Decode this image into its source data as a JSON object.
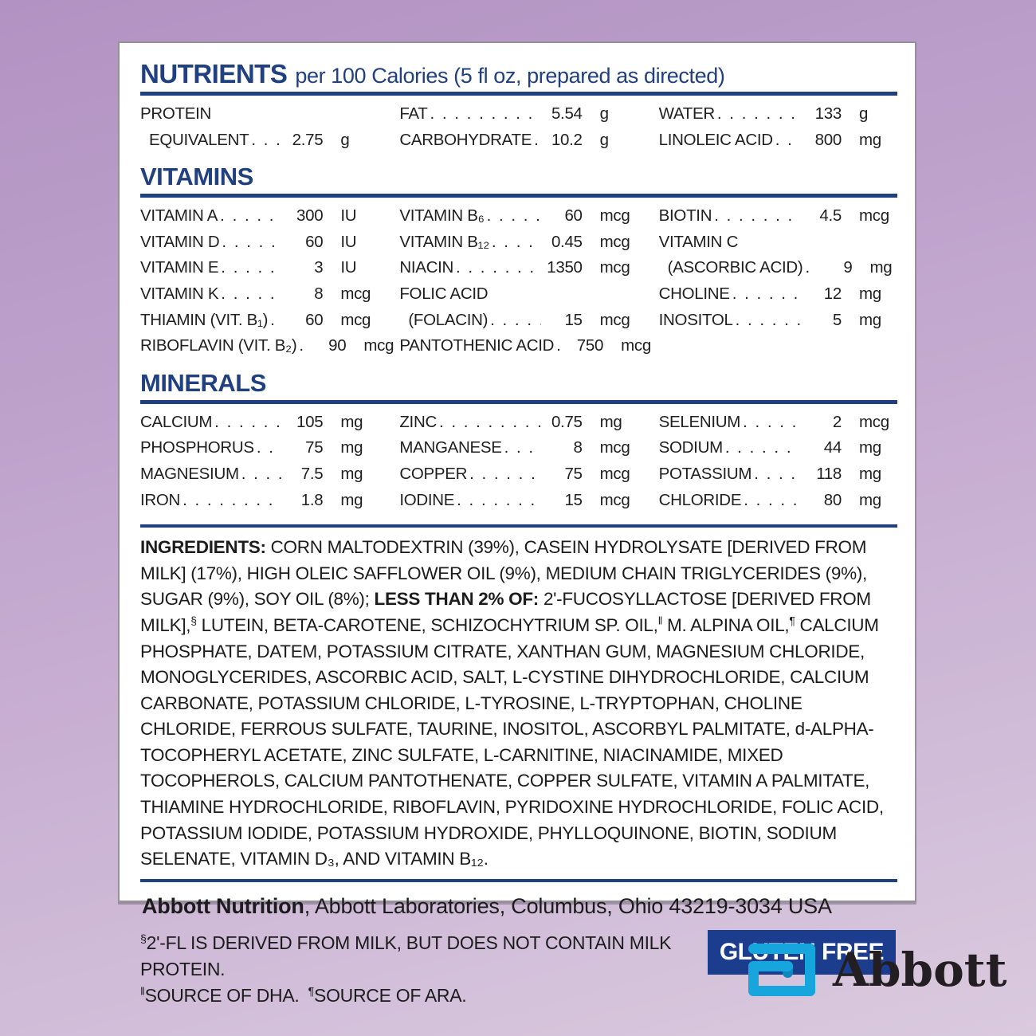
{
  "colors": {
    "heading_navy": "#21407f",
    "badge_navy": "#1c3c8e",
    "logo_cyan": "#17a5de",
    "background_lavender_top": "#b292c2",
    "background_lavender_bottom": "#dacade"
  },
  "header": {
    "title": "NUTRIENTS",
    "subtitle": "per 100 Calories (5 fl oz, prepared as directed)"
  },
  "nutrients": {
    "columns": [
      [
        {
          "line1": "PROTEIN",
          "label": "EQUIVALENT",
          "value": "2.75",
          "unit": "g"
        }
      ],
      [
        {
          "label": "FAT",
          "value": "5.54",
          "unit": "g"
        },
        {
          "label": "CARBOHYDRATE",
          "value": "10.2",
          "unit": "g"
        }
      ],
      [
        {
          "label": "WATER",
          "value": "133",
          "unit": "g"
        },
        {
          "label": "LINOLEIC ACID",
          "value": "800",
          "unit": "mg"
        }
      ]
    ]
  },
  "vitamins": {
    "title": "VITAMINS",
    "columns": [
      [
        {
          "label": "VITAMIN A",
          "value": "300",
          "unit": "IU"
        },
        {
          "label": "VITAMIN D",
          "value": "60",
          "unit": "IU"
        },
        {
          "label": "VITAMIN E",
          "value": "3",
          "unit": "IU"
        },
        {
          "label": "VITAMIN K",
          "value": "8",
          "unit": "mcg"
        },
        {
          "label": "THIAMIN (VIT. B₁)",
          "value": "60",
          "unit": "mcg"
        },
        {
          "label": "RIBOFLAVIN (VIT. B₂)",
          "value": "90",
          "unit": "mcg"
        }
      ],
      [
        {
          "label": "VITAMIN B₆",
          "value": "60",
          "unit": "mcg"
        },
        {
          "label": "VITAMIN B₁₂",
          "value": "0.45",
          "unit": "mcg"
        },
        {
          "label": "NIACIN",
          "value": "1350",
          "unit": "mcg"
        },
        {
          "line1": "FOLIC ACID",
          "label": "(FOLACIN)",
          "value": "15",
          "unit": "mcg"
        },
        {
          "label": "PANTOTHENIC ACID",
          "value": "750",
          "unit": "mcg"
        }
      ],
      [
        {
          "label": "BIOTIN",
          "value": "4.5",
          "unit": "mcg"
        },
        {
          "line1": "VITAMIN C",
          "label": "(ASCORBIC ACID)",
          "value": "9",
          "unit": "mg"
        },
        {
          "label": "CHOLINE",
          "value": "12",
          "unit": "mg"
        },
        {
          "label": "INOSITOL",
          "value": "5",
          "unit": "mg"
        }
      ]
    ]
  },
  "minerals": {
    "title": "MINERALS",
    "columns": [
      [
        {
          "label": "CALCIUM",
          "value": "105",
          "unit": "mg"
        },
        {
          "label": "PHOSPHORUS",
          "value": "75",
          "unit": "mg"
        },
        {
          "label": "MAGNESIUM",
          "value": "7.5",
          "unit": "mg"
        },
        {
          "label": "IRON",
          "value": "1.8",
          "unit": "mg"
        }
      ],
      [
        {
          "label": "ZINC",
          "value": "0.75",
          "unit": "mg"
        },
        {
          "label": "MANGANESE",
          "value": "8",
          "unit": "mcg"
        },
        {
          "label": "COPPER",
          "value": "75",
          "unit": "mcg"
        },
        {
          "label": "IODINE",
          "value": "15",
          "unit": "mcg"
        }
      ],
      [
        {
          "label": "SELENIUM",
          "value": "2",
          "unit": "mcg"
        },
        {
          "label": "SODIUM",
          "value": "44",
          "unit": "mg"
        },
        {
          "label": "POTASSIUM",
          "value": "118",
          "unit": "mg"
        },
        {
          "label": "CHLORIDE",
          "value": "80",
          "unit": "mg"
        }
      ]
    ]
  },
  "ingredients": {
    "segments": [
      {
        "text": "INGREDIENTS: ",
        "bold": true
      },
      {
        "text": "CORN MALTODEXTRIN (39%), CASEIN HYDROLYSATE [DERIVED FROM MILK] (17%), HIGH OLEIC SAFFLOWER OIL (9%), MEDIUM CHAIN TRIGLYCERIDES (9%), SUGAR (9%), SOY OIL (8%); "
      },
      {
        "text": "LESS THAN 2% OF: ",
        "bold": true
      },
      {
        "text": "2'-FUCOSYLLACTOSE [DERIVED FROM MILK],"
      },
      {
        "text": "§",
        "sup": true
      },
      {
        "text": " LUTEIN, BETA-CAROTENE, SCHIZOCHYTRIUM SP. OIL,"
      },
      {
        "text": "‖",
        "sup": true
      },
      {
        "text": " M. ALPINA OIL,"
      },
      {
        "text": "¶",
        "sup": true
      },
      {
        "text": " CALCIUM PHOSPHATE, DATEM, POTASSIUM CITRATE, XANTHAN GUM, MAGNESIUM CHLORIDE, MONOGLYCERIDES, ASCORBIC ACID, SALT, L-CYSTINE DIHYDROCHLORIDE, CALCIUM CARBONATE, POTASSIUM CHLORIDE, L-TYROSINE, L-TRYPTOPHAN, CHOLINE CHLORIDE, FERROUS SULFATE, TAURINE, INOSITOL, ASCORBYL PALMITATE, d-ALPHA-TOCOPHERYL ACETATE, ZINC SULFATE, L-CARNITINE, NIACINAMIDE, MIXED TOCOPHEROLS, CALCIUM PANTOTHENATE, COPPER SULFATE, VITAMIN A PALMITATE, THIAMINE HYDROCHLORIDE, RIBOFLAVIN, PYRIDOXINE HYDROCHLORIDE, FOLIC ACID, POTASSIUM IODIDE, POTASSIUM HYDROXIDE, PHYLLOQUINONE, BIOTIN, SODIUM SELENATE, VITAMIN D₃, AND VITAMIN B₁₂."
      }
    ]
  },
  "manufacturer": {
    "bold": "Abbott Nutrition",
    "rest": ", Abbott Laboratories, Columbus, Ohio 43219-3034 USA"
  },
  "footnotes": {
    "lines": [
      {
        "segments": [
          {
            "text": "§",
            "sup": true
          },
          {
            "text": "2'-FL IS DERIVED FROM MILK, BUT DOES NOT CONTAIN MILK PROTEIN."
          }
        ]
      },
      {
        "segments": [
          {
            "text": "‖",
            "sup": true
          },
          {
            "text": "SOURCE OF DHA. "
          },
          {
            "text": "¶",
            "sup": true
          },
          {
            "text": "SOURCE OF ARA."
          }
        ]
      }
    ]
  },
  "badge": {
    "label": "GLUTEN FREE"
  },
  "logo": {
    "symbol": "abbott-a-icon",
    "wordmark": "Abbott"
  }
}
